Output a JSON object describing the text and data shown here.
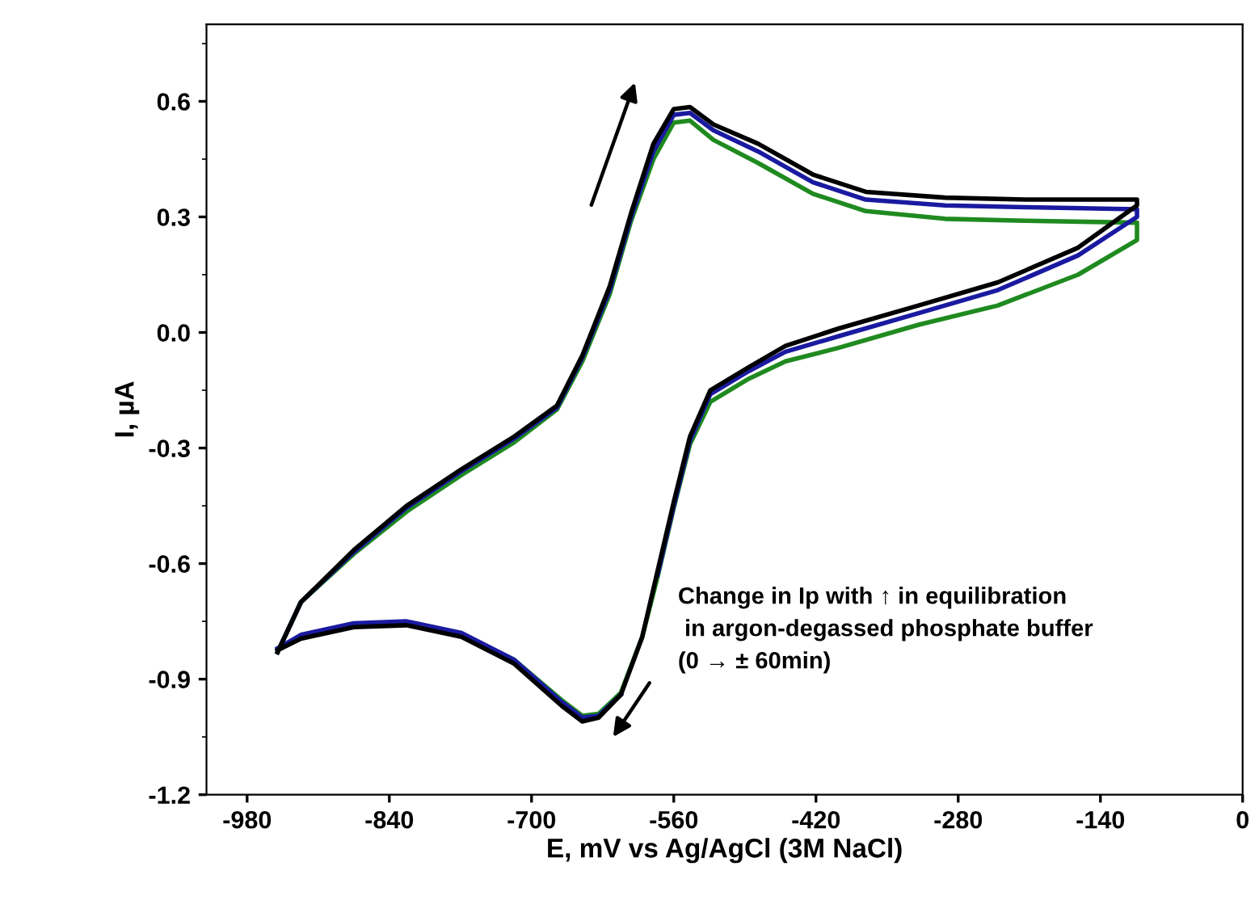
{
  "chart_data": {
    "type": "line",
    "xlabel": "E, mV vs Ag/AgCl (3M NaCl)",
    "ylabel": "I, µA",
    "annotations": [
      "Change in Ip with ↑ in equilibration\n in argon-degassed phosphate buffer\n(0 → ± 60min)"
    ],
    "x": [
      -950,
      -927,
      -875,
      -823,
      -769,
      -717,
      -675,
      -650,
      -623,
      -602,
      -580,
      -560,
      -544,
      -521,
      -477,
      -423,
      -371,
      -293,
      -214,
      -104,
      -104,
      -162,
      -241,
      -319,
      -398,
      -450,
      -486,
      -524,
      -544,
      -560,
      -576,
      -591,
      -612,
      -634,
      -650,
      -670,
      -717,
      -769,
      -823,
      -875,
      -927,
      -950
    ],
    "series": [
      {
        "color": "#1f8a1f",
        "values": [
          -0.83,
          -0.7,
          -0.575,
          -0.465,
          -0.37,
          -0.285,
          -0.2,
          -0.075,
          0.1,
          0.29,
          0.45,
          0.545,
          0.55,
          0.5,
          0.44,
          0.36,
          0.315,
          0.295,
          0.29,
          0.285,
          0.24,
          0.15,
          0.07,
          0.02,
          -0.04,
          -0.075,
          -0.12,
          -0.18,
          -0.29,
          -0.455,
          -0.635,
          -0.79,
          -0.935,
          -0.99,
          -0.995,
          -0.955,
          -0.85,
          -0.785,
          -0.755,
          -0.76,
          -0.79,
          -0.825
        ]
      },
      {
        "color": "#1a1aa0",
        "values": [
          -0.83,
          -0.7,
          -0.57,
          -0.455,
          -0.36,
          -0.275,
          -0.195,
          -0.065,
          0.11,
          0.3,
          0.47,
          0.565,
          0.57,
          0.525,
          0.47,
          0.39,
          0.345,
          0.33,
          0.325,
          0.32,
          0.3,
          0.2,
          0.11,
          0.05,
          -0.01,
          -0.05,
          -0.1,
          -0.16,
          -0.28,
          -0.45,
          -0.63,
          null,
          -0.94,
          -0.995,
          -1.0,
          -0.96,
          -0.85,
          -0.78,
          -0.75,
          -0.755,
          -0.785,
          -0.82
        ]
      },
      {
        "color": "#000000",
        "values": [
          -0.83,
          -0.7,
          -0.565,
          -0.45,
          -0.355,
          -0.27,
          -0.19,
          -0.06,
          0.12,
          0.31,
          0.49,
          0.58,
          0.585,
          0.54,
          0.49,
          0.41,
          0.365,
          0.35,
          0.345,
          0.345,
          0.33,
          0.22,
          0.13,
          0.07,
          0.01,
          -0.035,
          -0.09,
          -0.15,
          -0.27,
          -0.44,
          -0.62,
          -0.79,
          -0.94,
          -1.0,
          -1.01,
          -0.97,
          -0.86,
          -0.79,
          -0.76,
          -0.765,
          -0.795,
          -0.825
        ]
      }
    ],
    "xlim": [
      -1020,
      0
    ],
    "xticks": [
      -980,
      -840,
      -700,
      -560,
      -420,
      -280,
      -140,
      0
    ],
    "ylim": [
      -1.2,
      0.8
    ],
    "yticks": [
      -1.2,
      -0.9,
      -0.6,
      -0.3,
      {
        "value": 0,
        "label": "0.0"
      },
      0.3,
      0.6
    ],
    "grid": false,
    "legend": false,
    "marker": "none",
    "line_style": "solid"
  }
}
